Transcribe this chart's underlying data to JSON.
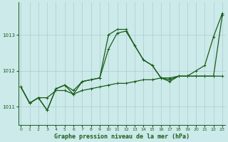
{
  "xlabel": "Graphe pression niveau de la mer (hPa)",
  "background_color": "#cceaea",
  "grid_color": "#aacccc",
  "line_color": "#1a5c1a",
  "ylim": [
    1010.5,
    1013.9
  ],
  "yticks": [
    1011,
    1012,
    1013
  ],
  "xlim": [
    -0.3,
    23.3
  ],
  "xticks": [
    0,
    1,
    2,
    3,
    4,
    5,
    6,
    7,
    8,
    9,
    10,
    11,
    12,
    13,
    14,
    15,
    16,
    17,
    18,
    19,
    20,
    21,
    22,
    23
  ],
  "series": [
    {
      "data": [
        1011.55,
        1011.1,
        1011.25,
        1011.25,
        1011.45,
        1011.45,
        1011.35,
        1011.45,
        1011.5,
        1011.55,
        1011.6,
        1011.65,
        1011.65,
        1011.7,
        1011.75,
        1011.75,
        1011.8,
        1011.8,
        1011.85,
        1011.85,
        1011.85,
        1011.85,
        1011.85,
        1013.55
      ],
      "lw": 0.9,
      "marker": "+"
    },
    {
      "data": [
        1011.55,
        1011.1,
        1011.25,
        1010.9,
        1011.5,
        1011.6,
        1011.45,
        1011.7,
        1011.75,
        1011.8,
        1013.0,
        1013.15,
        1013.15,
        1012.7,
        1012.3,
        1012.15,
        1011.8,
        1011.7,
        1011.85,
        1011.85,
        1011.85,
        1011.85,
        1011.85,
        1011.85
      ],
      "lw": 0.9,
      "marker": "+"
    },
    {
      "data": [
        1011.55,
        1011.1,
        1011.25,
        1010.9,
        1011.5,
        1011.6,
        1011.35,
        1011.7,
        1011.75,
        1011.8,
        1012.6,
        1013.05,
        1013.1,
        1012.7,
        1012.3,
        1012.15,
        1011.8,
        1011.75,
        1011.85,
        1011.85,
        1012.0,
        1012.15,
        1012.95,
        1013.6
      ],
      "lw": 0.9,
      "marker": "+"
    }
  ]
}
